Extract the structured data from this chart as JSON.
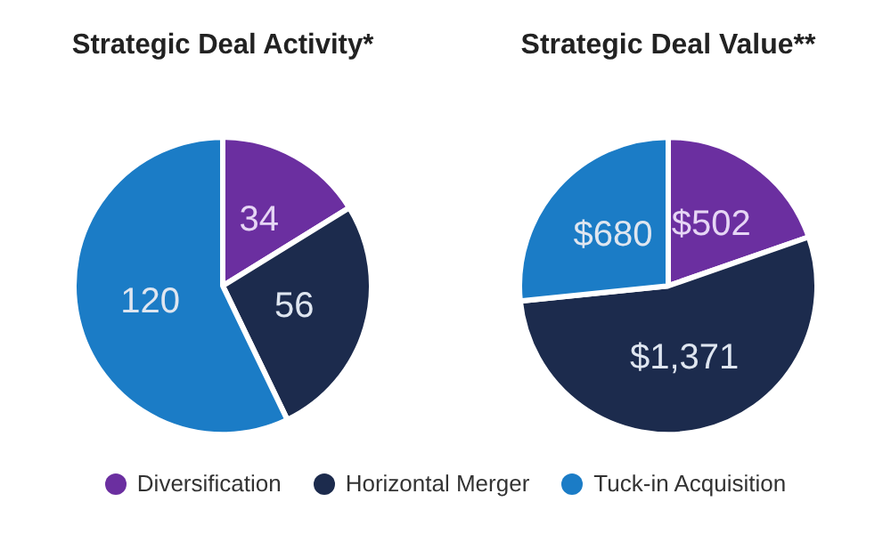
{
  "chart_data": [
    {
      "type": "pie",
      "title": "Strategic Deal Activity*",
      "categories": [
        "Diversification",
        "Horizontal Merger",
        "Tuck-in Acquisition"
      ],
      "values": [
        34,
        56,
        120
      ],
      "colors": [
        "#6b2fa0",
        "#1c2b4d",
        "#1b7cc6"
      ],
      "data_labels": true,
      "legend": "bottom"
    },
    {
      "type": "pie",
      "title": "Strategic Deal Value**",
      "categories": [
        null,
        null,
        null
      ],
      "values": [
        502,
        1371,
        680
      ],
      "colors": [
        "#6b2fa0",
        "#1c2b4d",
        "#1b7cc6"
      ],
      "value_labels": [
        "$502",
        "$1,371",
        "$680"
      ]
    }
  ]
}
